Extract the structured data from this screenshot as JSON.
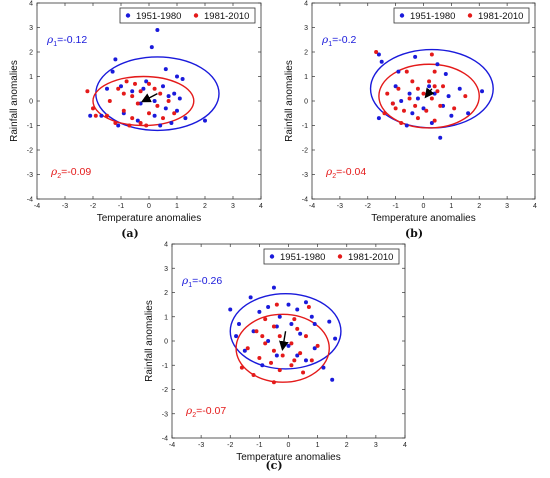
{
  "chart_data": [
    {
      "type": "scatter",
      "panel_label": "(a)",
      "xlabel": "Temperature anomalies",
      "ylabel": "Rainfall anomalies",
      "xlim": [
        -4,
        4
      ],
      "ylim": [
        -4,
        4
      ],
      "xticks": [
        -4,
        -3,
        -2,
        -1,
        0,
        1,
        2,
        3,
        4
      ],
      "yticks": [
        -4,
        -3,
        -2,
        -1,
        0,
        1,
        2,
        3,
        4
      ],
      "grid": false,
      "legend": {
        "placement": "top-right",
        "entries": [
          "1951-1980",
          "1981-2010"
        ]
      },
      "annotations": [
        {
          "text": "-0.12",
          "symbol": "ρ",
          "sub": "1",
          "color": "#1a1adb"
        },
        {
          "text": "-0.09",
          "symbol": "ρ",
          "sub": "2",
          "color": "#e41a1a"
        }
      ],
      "series": [
        {
          "name": "1951-1980",
          "color": "#1a1adb",
          "ellipse": {
            "cx": 0.3,
            "cy": 0.3,
            "rx": 2.2,
            "ry": 1.5
          },
          "points": [
            [
              0.3,
              2.9
            ],
            [
              0.1,
              2.2
            ],
            [
              -1.2,
              1.7
            ],
            [
              -1.3,
              1.2
            ],
            [
              0.6,
              1.3
            ],
            [
              1.0,
              1.0
            ],
            [
              1.2,
              0.9
            ],
            [
              -0.1,
              0.8
            ],
            [
              0.5,
              0.6
            ],
            [
              -1.0,
              0.6
            ],
            [
              -1.5,
              0.5
            ],
            [
              -0.6,
              0.4
            ],
            [
              0.7,
              0.2
            ],
            [
              1.1,
              0.1
            ],
            [
              0.2,
              0.0
            ],
            [
              -0.3,
              -0.1
            ],
            [
              0.6,
              -0.3
            ],
            [
              1.0,
              -0.4
            ],
            [
              -0.9,
              -0.5
            ],
            [
              0.2,
              -0.6
            ],
            [
              1.3,
              -0.7
            ],
            [
              -1.7,
              -0.6
            ],
            [
              -2.1,
              -0.6
            ],
            [
              -0.4,
              -0.8
            ],
            [
              0.8,
              -0.9
            ],
            [
              2.0,
              -0.8
            ],
            [
              -1.1,
              -1.0
            ],
            [
              0.4,
              -1.0
            ],
            [
              -0.2,
              0.5
            ],
            [
              0.9,
              0.3
            ]
          ]
        },
        {
          "name": "1981-2010",
          "color": "#e41a1a",
          "ellipse": {
            "cx": -0.2,
            "cy": 0.0,
            "rx": 1.8,
            "ry": 1.0
          },
          "points": [
            [
              -0.8,
              0.8
            ],
            [
              -0.5,
              0.7
            ],
            [
              0.0,
              0.7
            ],
            [
              -1.1,
              0.5
            ],
            [
              0.2,
              0.5
            ],
            [
              -0.3,
              0.4
            ],
            [
              -2.2,
              0.4
            ],
            [
              -0.9,
              0.3
            ],
            [
              0.4,
              0.3
            ],
            [
              -0.6,
              0.2
            ],
            [
              -0.1,
              0.1
            ],
            [
              0.7,
              0.0
            ],
            [
              -1.4,
              0.0
            ],
            [
              -0.4,
              -0.1
            ],
            [
              0.3,
              -0.2
            ],
            [
              -2.0,
              -0.3
            ],
            [
              -0.9,
              -0.4
            ],
            [
              0.0,
              -0.5
            ],
            [
              0.9,
              -0.5
            ],
            [
              -1.5,
              -0.6
            ],
            [
              -0.6,
              -0.7
            ],
            [
              0.5,
              -0.7
            ],
            [
              -1.2,
              -0.9
            ],
            [
              -0.3,
              -0.9
            ],
            [
              -0.1,
              -1.0
            ],
            [
              -1.9,
              -0.6
            ],
            [
              -0.7,
              -1.0
            ]
          ]
        }
      ],
      "arrow": {
        "from": [
          0.3,
          0.3
        ],
        "to": [
          -0.2,
          0.0
        ]
      }
    },
    {
      "type": "scatter",
      "panel_label": "(b)",
      "xlabel": "Temperature anomalies",
      "ylabel": "Rainfall anomalies",
      "xlim": [
        -4,
        4
      ],
      "ylim": [
        -4,
        4
      ],
      "xticks": [
        -4,
        -3,
        -2,
        -1,
        0,
        1,
        2,
        3,
        4
      ],
      "yticks": [
        -4,
        -3,
        -2,
        -1,
        0,
        1,
        2,
        3,
        4
      ],
      "grid": false,
      "legend": {
        "placement": "top-right",
        "entries": [
          "1951-1980",
          "1981-2010"
        ]
      },
      "annotations": [
        {
          "text": "-0.2",
          "symbol": "ρ",
          "sub": "1",
          "color": "#1a1adb"
        },
        {
          "text": "-0.04",
          "symbol": "ρ",
          "sub": "2",
          "color": "#e41a1a"
        }
      ],
      "series": [
        {
          "name": "1951-1980",
          "color": "#1a1adb",
          "ellipse": {
            "cx": 0.3,
            "cy": 0.5,
            "rx": 2.2,
            "ry": 1.6
          },
          "points": [
            [
              -1.6,
              1.9
            ],
            [
              -0.3,
              1.8
            ],
            [
              -1.5,
              1.6
            ],
            [
              0.5,
              1.5
            ],
            [
              -0.9,
              1.2
            ],
            [
              0.8,
              1.1
            ],
            [
              -1.0,
              0.6
            ],
            [
              0.2,
              0.6
            ],
            [
              1.3,
              0.5
            ],
            [
              2.1,
              0.4
            ],
            [
              -0.5,
              0.3
            ],
            [
              0.4,
              0.3
            ],
            [
              -0.2,
              0.1
            ],
            [
              -1.1,
              -0.1
            ],
            [
              0.7,
              -0.2
            ],
            [
              0.0,
              -0.3
            ],
            [
              -0.4,
              -0.5
            ],
            [
              1.0,
              -0.6
            ],
            [
              -1.6,
              -0.7
            ],
            [
              0.3,
              -0.9
            ],
            [
              -0.6,
              -1.0
            ],
            [
              0.6,
              -1.5
            ],
            [
              1.6,
              -0.5
            ],
            [
              -0.8,
              0.0
            ],
            [
              0.9,
              0.2
            ]
          ]
        },
        {
          "name": "1981-2010",
          "color": "#e41a1a",
          "ellipse": {
            "cx": 0.2,
            "cy": 0.2,
            "rx": 1.8,
            "ry": 1.3
          },
          "points": [
            [
              -1.7,
              2.0
            ],
            [
              0.3,
              1.9
            ],
            [
              -0.6,
              1.2
            ],
            [
              0.4,
              1.2
            ],
            [
              -0.4,
              0.8
            ],
            [
              0.2,
              0.8
            ],
            [
              0.4,
              0.6
            ],
            [
              -0.9,
              0.5
            ],
            [
              -0.2,
              0.5
            ],
            [
              0.5,
              0.4
            ],
            [
              -1.3,
              0.3
            ],
            [
              0.0,
              0.3
            ],
            [
              -0.5,
              0.1
            ],
            [
              0.3,
              0.1
            ],
            [
              -1.1,
              -0.1
            ],
            [
              -0.3,
              -0.2
            ],
            [
              0.6,
              -0.2
            ],
            [
              -0.7,
              -0.4
            ],
            [
              0.1,
              -0.4
            ],
            [
              1.1,
              -0.3
            ],
            [
              -1.4,
              -0.5
            ],
            [
              -0.2,
              -0.7
            ],
            [
              0.4,
              -0.8
            ],
            [
              1.5,
              0.2
            ],
            [
              -0.8,
              -0.9
            ],
            [
              0.7,
              0.6
            ],
            [
              -1.0,
              -0.3
            ]
          ]
        }
      ],
      "arrow": {
        "from": [
          0.3,
          0.5
        ],
        "to": [
          0.1,
          0.2
        ]
      }
    },
    {
      "type": "scatter",
      "panel_label": "(c)",
      "xlabel": "Temperature anomalies",
      "ylabel": "Rainfall anomalies",
      "xlim": [
        -4,
        4
      ],
      "ylim": [
        -4,
        4
      ],
      "xticks": [
        -4,
        -3,
        -2,
        -1,
        0,
        1,
        2,
        3,
        4
      ],
      "yticks": [
        -4,
        -3,
        -2,
        -1,
        0,
        1,
        2,
        3,
        4
      ],
      "grid": false,
      "legend": {
        "placement": "top-right",
        "entries": [
          "1951-1980",
          "1981-2010"
        ]
      },
      "annotations": [
        {
          "text": "-0.26",
          "symbol": "ρ",
          "sub": "1",
          "color": "#1a1adb"
        },
        {
          "text": "-0.07",
          "symbol": "ρ",
          "sub": "2",
          "color": "#e41a1a"
        }
      ],
      "series": [
        {
          "name": "1951-1980",
          "color": "#1a1adb",
          "ellipse": {
            "cx": -0.1,
            "cy": 0.4,
            "rx": 1.9,
            "ry": 1.55
          },
          "points": [
            [
              -0.5,
              2.2
            ],
            [
              -1.3,
              1.8
            ],
            [
              0.6,
              1.6
            ],
            [
              0.0,
              1.5
            ],
            [
              -0.7,
              1.4
            ],
            [
              -2.0,
              1.3
            ],
            [
              0.3,
              1.3
            ],
            [
              -1.0,
              1.2
            ],
            [
              -0.3,
              1.0
            ],
            [
              0.8,
              1.0
            ],
            [
              1.4,
              0.8
            ],
            [
              -1.7,
              0.7
            ],
            [
              0.1,
              0.7
            ],
            [
              -0.4,
              0.6
            ],
            [
              -1.2,
              0.4
            ],
            [
              0.4,
              0.3
            ],
            [
              1.6,
              0.1
            ],
            [
              -0.7,
              0.0
            ],
            [
              0.0,
              -0.2
            ],
            [
              0.9,
              -0.3
            ],
            [
              -1.5,
              -0.4
            ],
            [
              -0.4,
              -0.6
            ],
            [
              0.6,
              -0.8
            ],
            [
              1.2,
              -1.1
            ],
            [
              1.5,
              -1.6
            ],
            [
              -0.9,
              -1.0
            ],
            [
              0.3,
              -0.6
            ],
            [
              -1.8,
              0.2
            ],
            [
              0.9,
              0.7
            ]
          ]
        },
        {
          "name": "1981-2010",
          "color": "#e41a1a",
          "ellipse": {
            "cx": -0.2,
            "cy": -0.3,
            "rx": 1.6,
            "ry": 1.4
          },
          "points": [
            [
              -0.4,
              1.5
            ],
            [
              0.7,
              1.4
            ],
            [
              -0.8,
              0.9
            ],
            [
              0.2,
              0.9
            ],
            [
              -0.5,
              0.6
            ],
            [
              0.3,
              0.5
            ],
            [
              -1.1,
              0.4
            ],
            [
              -0.3,
              0.2
            ],
            [
              0.6,
              0.2
            ],
            [
              -0.8,
              -0.1
            ],
            [
              0.1,
              -0.1
            ],
            [
              1.0,
              -0.2
            ],
            [
              -1.4,
              -0.3
            ],
            [
              -0.5,
              -0.4
            ],
            [
              0.4,
              -0.5
            ],
            [
              -0.2,
              -0.6
            ],
            [
              -1.0,
              -0.7
            ],
            [
              0.8,
              -0.8
            ],
            [
              -0.6,
              -0.9
            ],
            [
              0.1,
              -1.0
            ],
            [
              -1.6,
              -1.1
            ],
            [
              -0.3,
              -1.2
            ],
            [
              0.5,
              -1.3
            ],
            [
              -1.2,
              -1.4
            ],
            [
              -0.5,
              -1.7
            ],
            [
              0.2,
              -0.8
            ],
            [
              -0.9,
              0.2
            ]
          ]
        }
      ],
      "arrow": {
        "from": [
          -0.1,
          0.4
        ],
        "to": [
          -0.2,
          -0.3
        ]
      }
    }
  ]
}
